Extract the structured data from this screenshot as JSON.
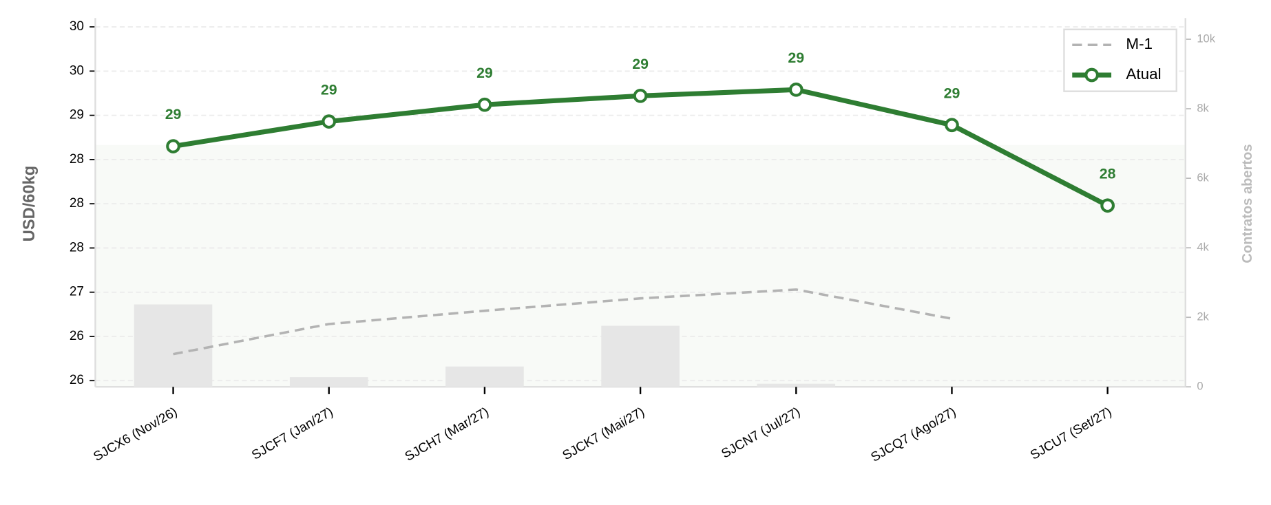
{
  "chart_data": {
    "type": "line",
    "categories": [
      "SJCX6 (Nov/26)",
      "SJCF7 (Jan/27)",
      "SJCH7 (Mar/27)",
      "SJCK7 (Mai/27)",
      "SJCN7 (Jul/27)",
      "SJCQ7 (Ago/27)",
      "SJCU7 (Set/27)"
    ],
    "y_label": "USD/60kg",
    "y2_label": "Contratos abertos",
    "ylim": [
      25.93,
      30.1
    ],
    "yticks": [
      26,
      {
        "value": 26.5,
        "label": "26"
      },
      27,
      {
        "value": 27.5,
        "label": "28"
      },
      28,
      {
        "value": 28.5,
        "label": "28"
      },
      29,
      {
        "value": 29.5,
        "label": "30"
      },
      30
    ],
    "y2lim": [
      0,
      10610
    ],
    "y2ticks": [
      0,
      {
        "value": 2000,
        "label": "2k"
      },
      {
        "value": 4000,
        "label": "4k"
      },
      {
        "value": 6000,
        "label": "6k"
      },
      {
        "value": 8000,
        "label": "8k"
      },
      {
        "value": 10000,
        "label": "10k"
      }
    ],
    "grid": true,
    "legend": "upper right",
    "series": [
      {
        "name": "M-1",
        "type": "line",
        "style": "dashed",
        "color": "#b3b3b3",
        "values": [
          26.3,
          26.64,
          26.79,
          26.93,
          27.03,
          26.7,
          null
        ]
      },
      {
        "name": "Atual",
        "type": "line",
        "style": "solid-marker",
        "color": "#2e7d32",
        "values": [
          28.65,
          28.93,
          29.12,
          29.22,
          29.29,
          28.89,
          27.98
        ],
        "value_labels": [
          "29",
          "29",
          "29",
          "29",
          "29",
          "29",
          "28"
        ]
      },
      {
        "type": "bar",
        "axis": "y2",
        "color": "#e6e6e6",
        "values": [
          2370,
          280,
          585,
          1756,
          90,
          0,
          0
        ]
      }
    ]
  }
}
